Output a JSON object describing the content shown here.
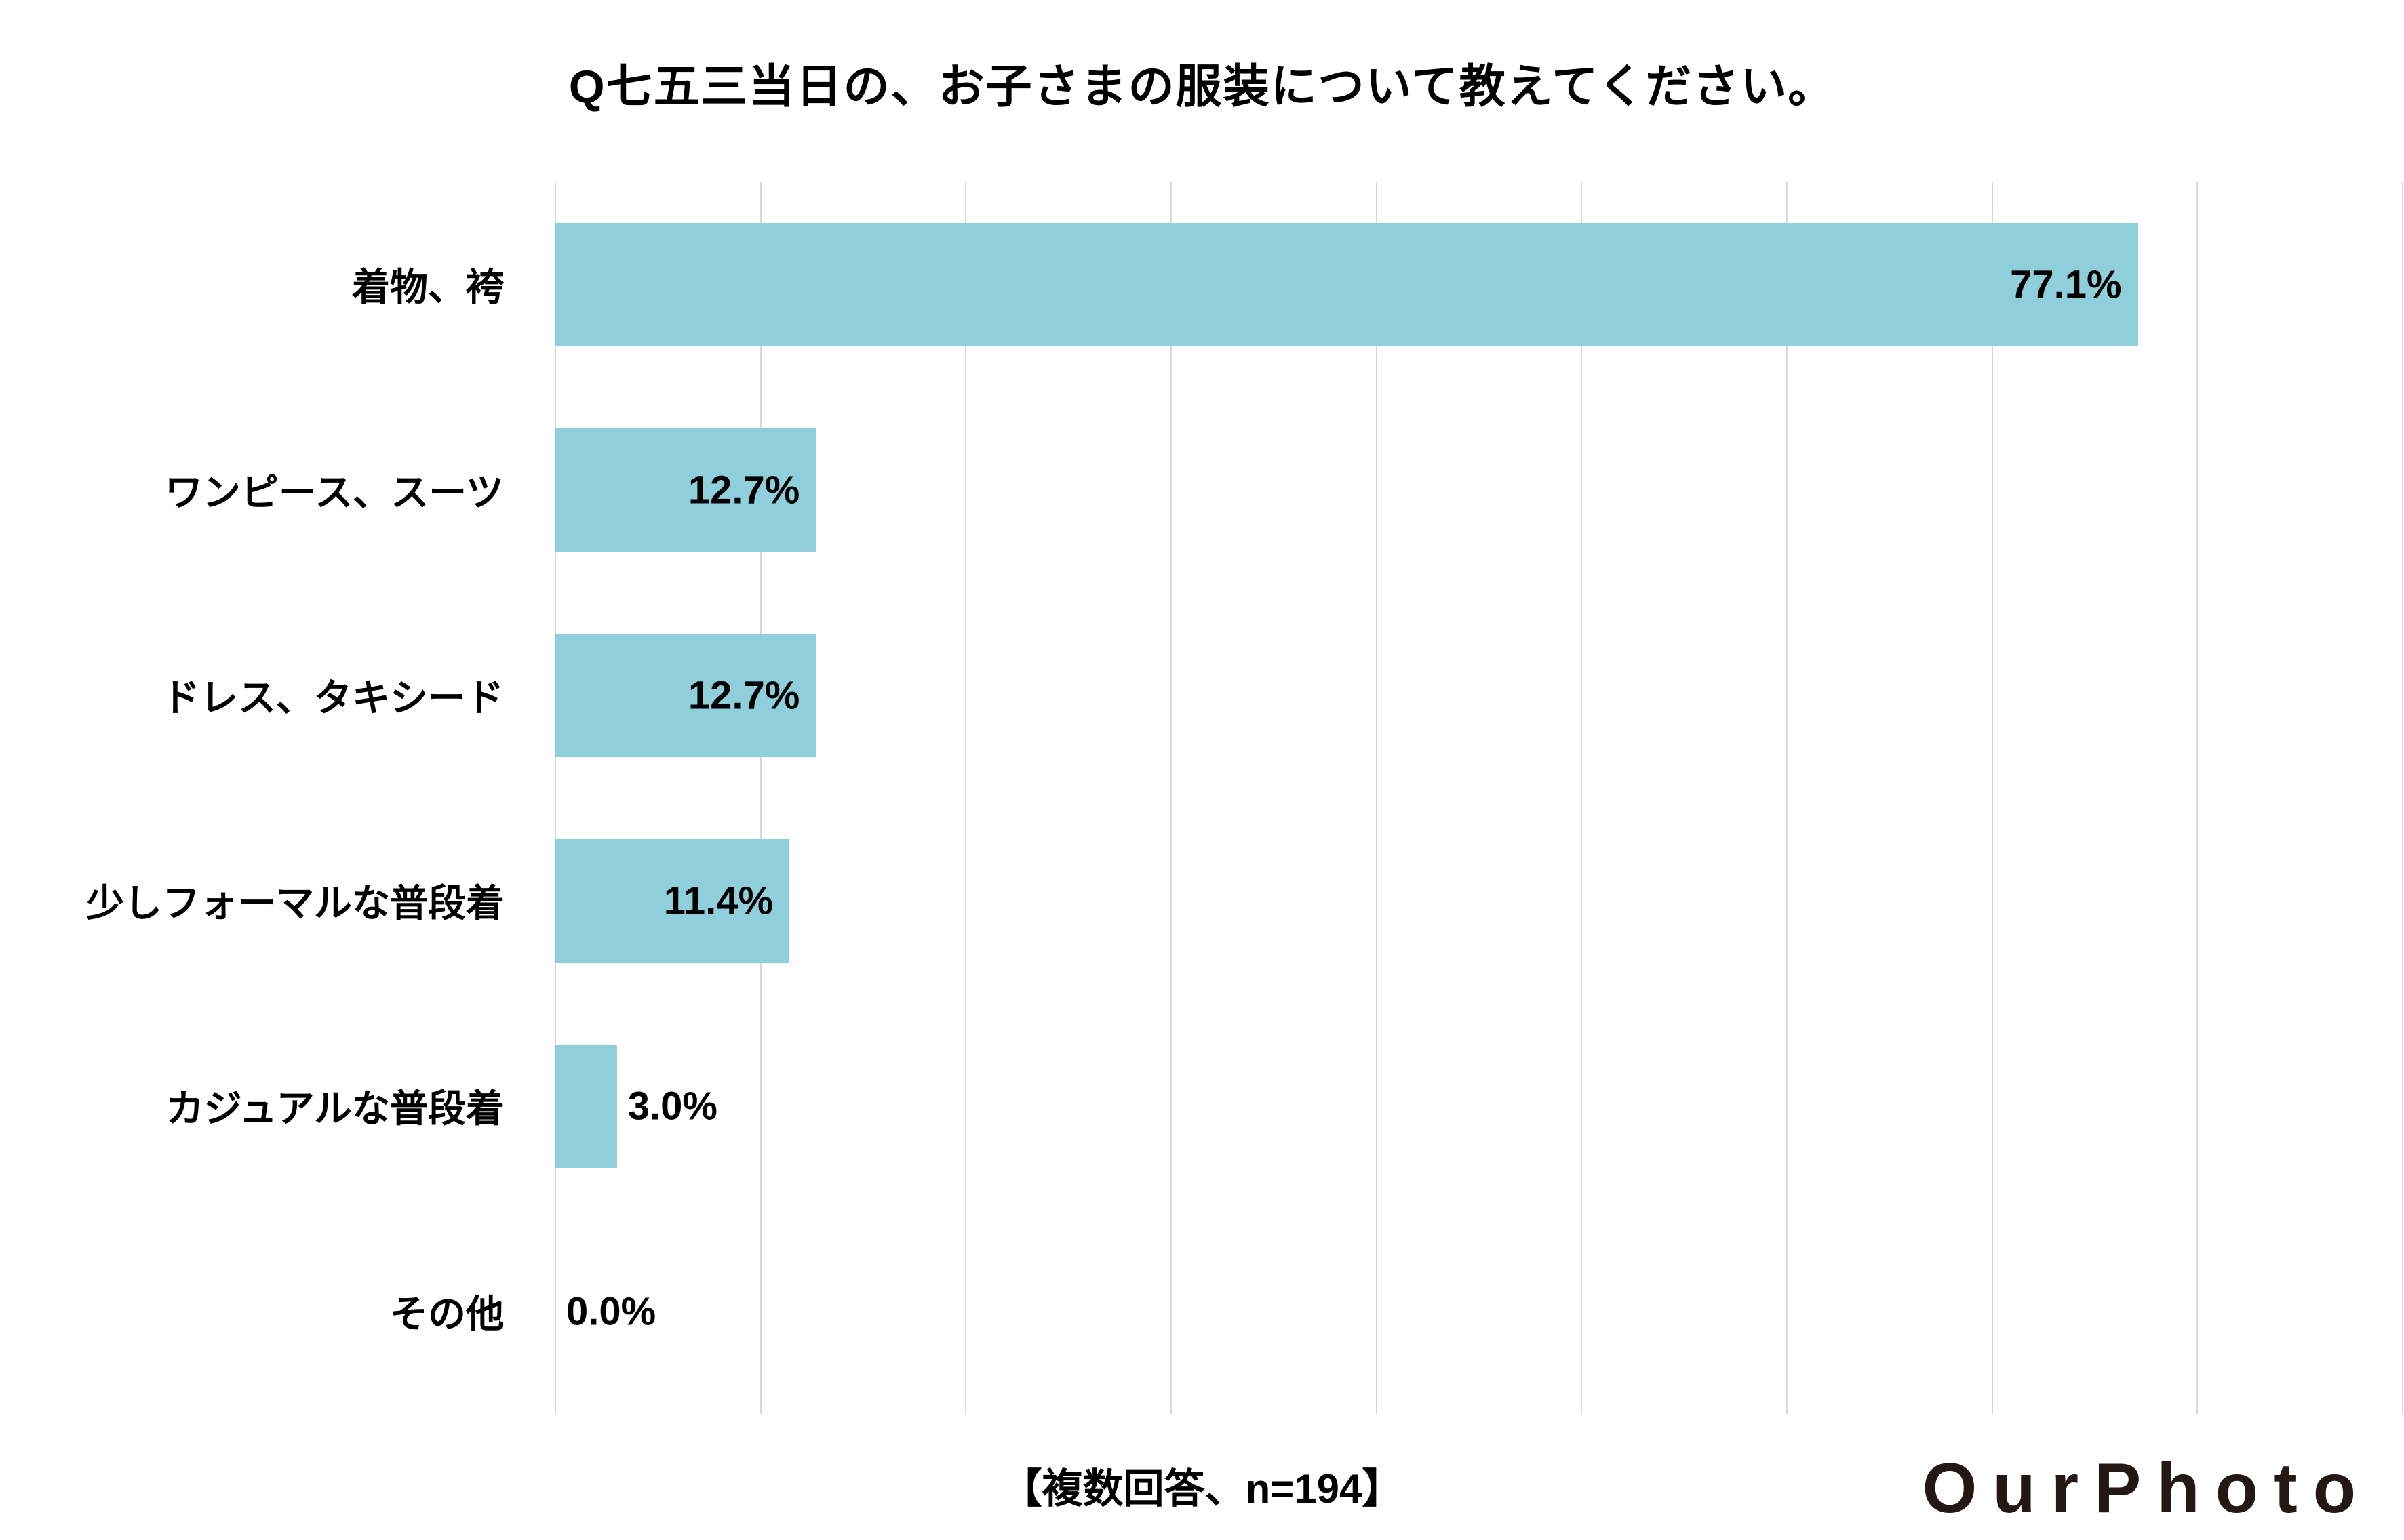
{
  "chart_data": {
    "type": "bar",
    "orientation": "horizontal",
    "title": "Q七五三当日の、お子さまの服装について教えてください。",
    "categories": [
      "着物、袴",
      "ワンピース、スーツ",
      "ドレス、タキシード",
      "少しフォーマルな普段着",
      "カジュアルな普段着",
      "その他"
    ],
    "values": [
      77.1,
      12.7,
      12.7,
      11.4,
      3.0,
      0.0
    ],
    "value_labels": [
      "77.1%",
      "12.7%",
      "12.7%",
      "11.4%",
      "3.0%",
      "0.0%"
    ],
    "xlabel": "",
    "ylabel": "",
    "xlim": [
      0,
      90
    ],
    "gridline_step": 10,
    "grid": "vertical",
    "legend": "none",
    "bar_color": "#8ecfdb",
    "gridline_color": "#d9d9d9",
    "label_inside_threshold": 8,
    "note": "【複数回答、n=194】"
  },
  "logo": {
    "text": "OurPhoto",
    "color": "#231815"
  }
}
